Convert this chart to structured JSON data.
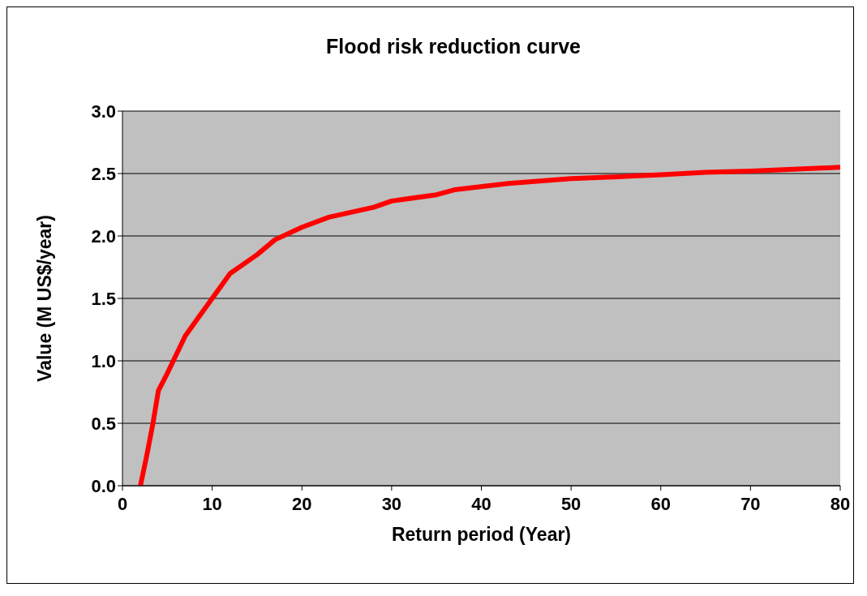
{
  "chart_data": {
    "type": "line",
    "title": "Flood risk reduction curve",
    "xlabel": "Return period (Year)",
    "ylabel": "Value (M US$/year)",
    "x": [
      2,
      2.7,
      3.4,
      4,
      5,
      6,
      7,
      8.5,
      10,
      12,
      15,
      17,
      20,
      23,
      28,
      30,
      35,
      37,
      43,
      50,
      54,
      57,
      60,
      65,
      70,
      80
    ],
    "series": [
      {
        "color": "#ff0000",
        "values": [
          0,
          0.24,
          0.5,
          0.76,
          0.9,
          1.05,
          1.2,
          1.35,
          1.5,
          1.7,
          1.85,
          1.97,
          2.07,
          2.15,
          2.23,
          2.28,
          2.33,
          2.37,
          2.42,
          2.46,
          2.47,
          2.48,
          2.49,
          2.51,
          2.52,
          2.55
        ]
      }
    ],
    "xlim": [
      0,
      80
    ],
    "xticks": [
      0,
      10,
      20,
      30,
      40,
      50,
      60,
      70,
      80
    ],
    "ylim": [
      0,
      3
    ],
    "yticks": [
      {
        "value": 0,
        "label": "0.0"
      },
      {
        "value": 0.5,
        "label": "0.5"
      },
      {
        "value": 1,
        "label": "1.0"
      },
      {
        "value": 1.5,
        "label": "1.5"
      },
      {
        "value": 2,
        "label": "2.0"
      },
      {
        "value": 2.5,
        "label": "2.5"
      },
      {
        "value": 3,
        "label": "3.0"
      }
    ],
    "grid": "y",
    "legend": false,
    "marker": "none",
    "line_style": "solid"
  }
}
